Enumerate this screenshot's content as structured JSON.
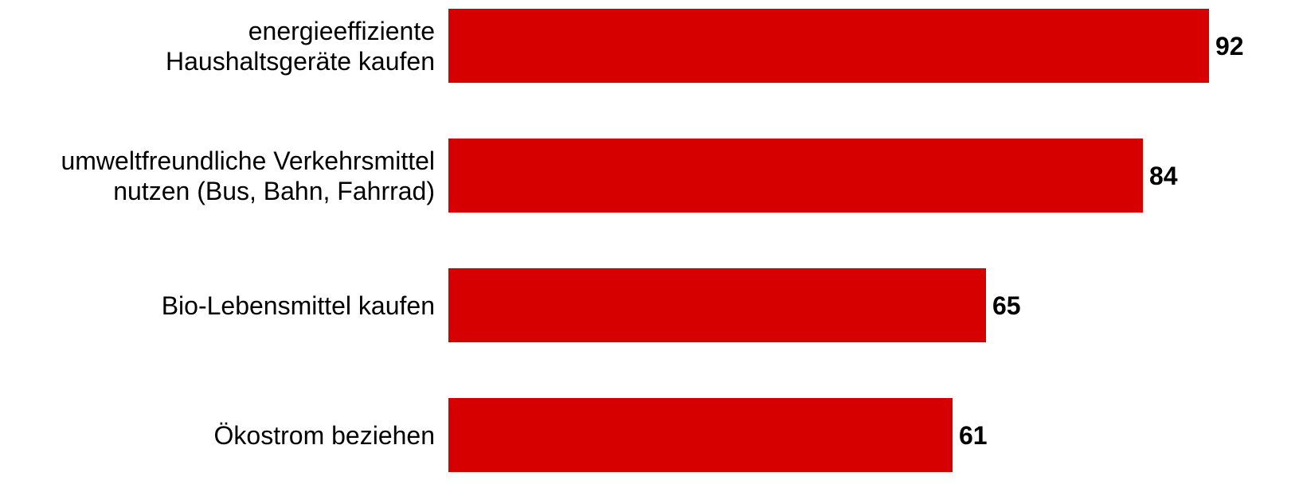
{
  "chart_data": {
    "type": "bar",
    "orientation": "horizontal",
    "categories": [
      [
        "energieeffiziente",
        "Haushaltsgeräte kaufen"
      ],
      [
        "umweltfreundliche Verkehrsmittel",
        "nutzen (Bus, Bahn, Fahrrad)"
      ],
      [
        "Bio-Lebensmittel kaufen"
      ],
      [
        "Ökostrom beziehen"
      ]
    ],
    "values": [
      92,
      84,
      65,
      61
    ],
    "value_labels": [
      "92",
      "84",
      "65",
      "61"
    ],
    "xlim": [
      0,
      92
    ],
    "grid": false,
    "legend": "none",
    "bar_color": "#d70000"
  }
}
